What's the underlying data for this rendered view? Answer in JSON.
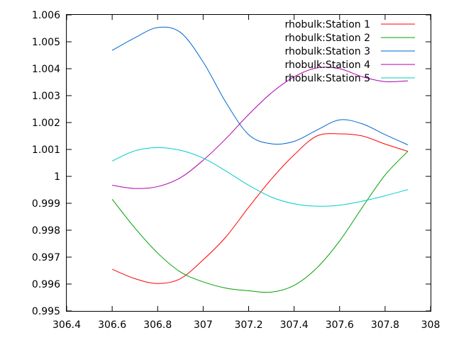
{
  "chart_data": {
    "type": "line",
    "title": "",
    "xlabel": "",
    "ylabel": "",
    "xlim": [
      306.4,
      308
    ],
    "ylim": [
      0.995,
      1.006
    ],
    "xticks": [
      "306.4",
      "306.6",
      "306.8",
      "307",
      "307.2",
      "307.4",
      "307.6",
      "307.8",
      "308"
    ],
    "yticks": [
      "0.995",
      "0.996",
      "0.997",
      "0.998",
      "0.999",
      "1",
      "1.001",
      "1.002",
      "1.003",
      "1.004",
      "1.005",
      "1.006"
    ],
    "grid": false,
    "legend_position": "top-right",
    "series": [
      {
        "name": "rhobulk:Station 1",
        "color": "#ff0000",
        "x": [
          306.6,
          306.7,
          306.8,
          306.9,
          307.0,
          307.1,
          307.2,
          307.3,
          307.4,
          307.5,
          307.6,
          307.7,
          307.8,
          307.9
        ],
        "y": [
          0.99655,
          0.9962,
          0.99602,
          0.9962,
          0.9969,
          0.99775,
          0.99885,
          0.9999,
          1.0008,
          1.0015,
          1.00158,
          1.0015,
          1.0012,
          1.00093
        ]
      },
      {
        "name": "rhobulk:Station 2",
        "color": "#00a000",
        "x": [
          306.6,
          306.7,
          306.8,
          306.9,
          307.0,
          307.1,
          307.2,
          307.3,
          307.4,
          307.5,
          307.6,
          307.7,
          307.8,
          307.9
        ],
        "y": [
          0.99915,
          0.99808,
          0.99715,
          0.99645,
          0.99608,
          0.99585,
          0.99575,
          0.9957,
          0.99595,
          0.9966,
          0.9976,
          0.99885,
          1.00005,
          1.00093
        ]
      },
      {
        "name": "rhobulk:Station 3",
        "color": "#0066cc",
        "x": [
          306.6,
          306.7,
          306.8,
          306.9,
          307.0,
          307.1,
          307.2,
          307.3,
          307.4,
          307.5,
          307.6,
          307.7,
          307.8,
          307.9
        ],
        "y": [
          1.00468,
          1.00515,
          1.00553,
          1.00535,
          1.00425,
          1.00275,
          1.00155,
          1.00121,
          1.0013,
          1.00172,
          1.0021,
          1.00195,
          1.00155,
          1.00117
        ]
      },
      {
        "name": "rhobulk:Station 4",
        "color": "#b000b0",
        "x": [
          306.6,
          306.7,
          306.8,
          306.9,
          307.0,
          307.1,
          307.2,
          307.3,
          307.4,
          307.5,
          307.6,
          307.7,
          307.8,
          307.9
        ],
        "y": [
          0.99967,
          0.99955,
          0.99962,
          0.99995,
          1.0006,
          1.0014,
          1.0023,
          1.0031,
          1.0037,
          1.00403,
          1.004,
          1.0037,
          1.00352,
          1.00355
        ]
      },
      {
        "name": "rhobulk:Station 5",
        "color": "#00cccc",
        "x": [
          306.6,
          306.7,
          306.8,
          306.9,
          307.0,
          307.1,
          307.2,
          307.3,
          307.4,
          307.5,
          307.6,
          307.7,
          307.8,
          307.9
        ],
        "y": [
          1.00057,
          1.00095,
          1.00107,
          1.00097,
          1.00068,
          1.0002,
          0.99967,
          0.99923,
          0.99898,
          0.99889,
          0.99893,
          0.99908,
          0.99928,
          0.99951
        ]
      }
    ]
  }
}
